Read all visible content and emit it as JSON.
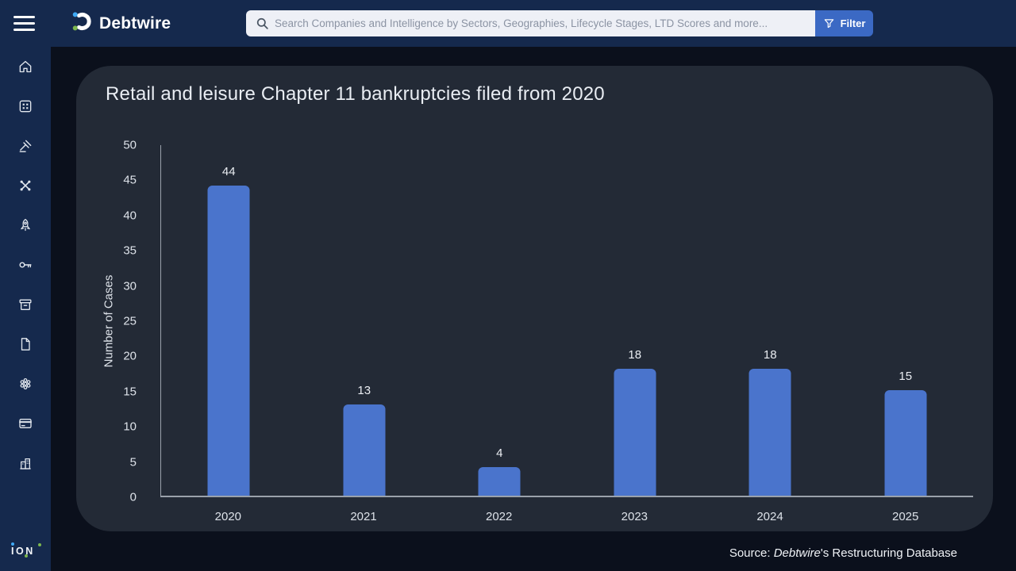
{
  "topbar": {
    "brand": "Debtwire",
    "search_placeholder": "Search Companies and Intelligence by Sectors, Geographies, Lifecycle Stages, LTD Scores and more...",
    "filter_label": "Filter"
  },
  "sidebar": {
    "icons": [
      "home",
      "apps-grid",
      "gavel",
      "network",
      "rocket",
      "key",
      "archive",
      "document",
      "cluster",
      "credit-card",
      "building"
    ],
    "footer_brand": "ION"
  },
  "chart_data": {
    "type": "bar",
    "title": "Retail and leisure Chapter 11 bankruptcies filed from 2020",
    "categories": [
      "2020",
      "2021",
      "2022",
      "2023",
      "2024",
      "2025"
    ],
    "values": [
      44,
      13,
      4,
      18,
      18,
      15
    ],
    "xlabel": "",
    "ylabel": "Number of Cases",
    "ylim": [
      0,
      50
    ],
    "ytick_step": 5,
    "grid": false,
    "legend": null,
    "bar_color": "#4a74cc",
    "value_labels": true
  },
  "source_note": {
    "prefix": "Source: ",
    "brand_italic": "Debtwire",
    "suffix": "'s Restructuring Database"
  },
  "colors": {
    "topbar_bg": "#15294d",
    "sidebar_bg": "#15294d",
    "page_bg": "#0b101c",
    "panel_bg": "#232a36",
    "bar": "#4a74cc",
    "accent_blue": "#3b69c4",
    "logo_dot_blue": "#3fa9f5",
    "logo_dot_green": "#7cb74e",
    "axis_line": "#9aa1ab"
  }
}
